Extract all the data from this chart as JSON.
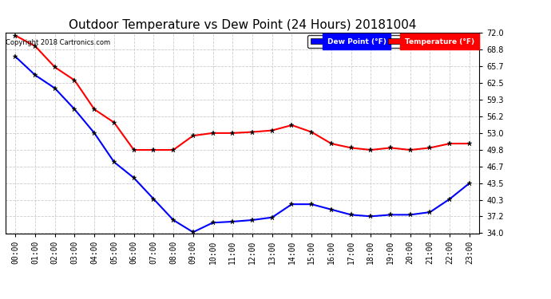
{
  "title": "Outdoor Temperature vs Dew Point (24 Hours) 20181004",
  "copyright": "Copyright 2018 Cartronics.com",
  "x_labels": [
    "00:00",
    "01:00",
    "02:00",
    "03:00",
    "04:00",
    "05:00",
    "06:00",
    "07:00",
    "08:00",
    "09:00",
    "10:00",
    "11:00",
    "12:00",
    "13:00",
    "14:00",
    "15:00",
    "16:00",
    "17:00",
    "18:00",
    "19:00",
    "20:00",
    "21:00",
    "22:00",
    "23:00"
  ],
  "temperature": [
    71.5,
    69.5,
    65.5,
    63.0,
    57.5,
    55.0,
    49.8,
    49.8,
    49.8,
    52.5,
    53.0,
    53.0,
    53.2,
    53.5,
    54.5,
    53.2,
    51.0,
    50.2,
    49.8,
    50.2,
    49.8,
    50.2,
    51.0,
    51.0
  ],
  "dew_point": [
    67.5,
    64.0,
    61.5,
    57.5,
    53.0,
    47.5,
    44.5,
    40.5,
    36.5,
    34.2,
    36.0,
    36.2,
    36.5,
    37.0,
    39.5,
    39.5,
    38.5,
    37.5,
    37.2,
    37.5,
    37.5,
    38.0,
    40.5,
    43.5
  ],
  "temp_color": "#ff0000",
  "dew_color": "#0000ff",
  "ylim": [
    34.0,
    72.0
  ],
  "yticks": [
    34.0,
    37.2,
    40.3,
    43.5,
    46.7,
    49.8,
    53.0,
    56.2,
    59.3,
    62.5,
    65.7,
    68.8,
    72.0
  ],
  "bg_color": "#ffffff",
  "plot_bg_color": "#ffffff",
  "grid_color": "#cccccc",
  "title_fontsize": 11,
  "tick_fontsize": 7,
  "copyright_fontsize": 6,
  "legend_dew_color": "#0000ff",
  "legend_temp_color": "#ff0000",
  "legend_text": [
    "Dew Point (°F)",
    "Temperature (°F)"
  ]
}
